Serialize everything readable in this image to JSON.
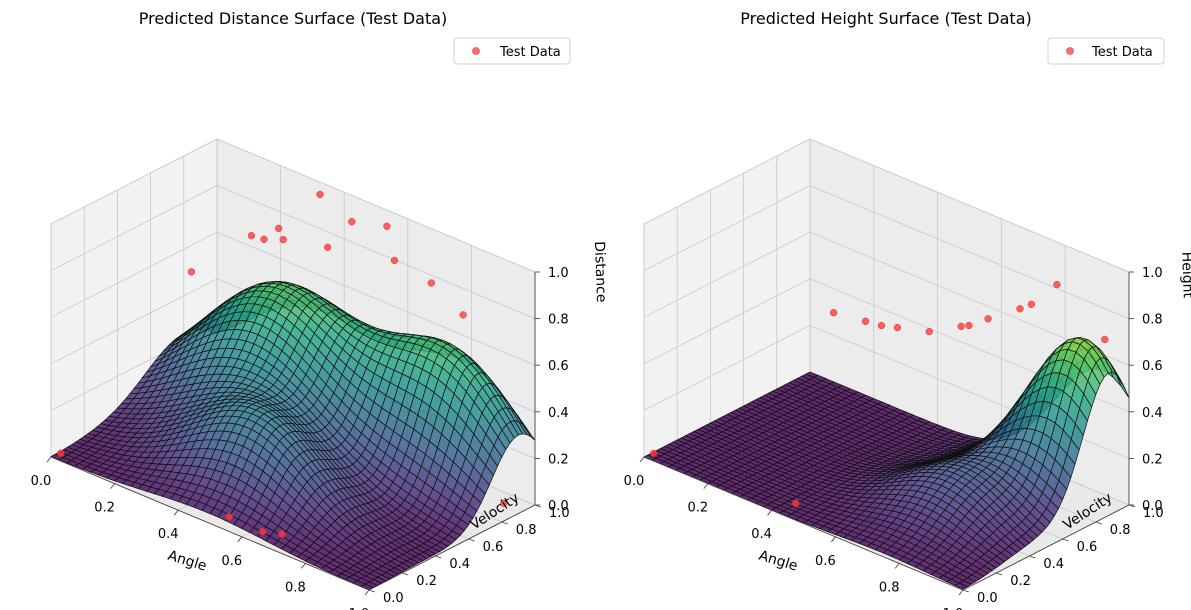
{
  "chart_data": [
    {
      "type": "surface3d",
      "title": "Predicted Distance Surface (Test Data)",
      "xlabel": "Angle",
      "ylabel": "Velocity",
      "zlabel": "Distance",
      "xlim": [
        0,
        1
      ],
      "ylim": [
        0,
        1
      ],
      "zlim": [
        0,
        1
      ],
      "xticks": [
        "0.0",
        "0.2",
        "0.4",
        "0.6",
        "0.8",
        "1.0"
      ],
      "yticks": [
        "0.0",
        "0.2",
        "0.4",
        "0.6",
        "0.8",
        "1.0"
      ],
      "zticks": [
        "0.0",
        "0.2",
        "0.4",
        "0.6",
        "0.8",
        "1.0"
      ],
      "legend": {
        "label": "Test Data",
        "position": "top-right"
      },
      "colormap": "viridis",
      "marker_color": "#ff3b3b",
      "grid": true,
      "surface": {
        "bumps": [
          {
            "x0": 0.3,
            "y0": 0.8,
            "amp": 0.6,
            "sx": 0.22,
            "sy": 0.24
          },
          {
            "x0": 0.8,
            "y0": 0.9,
            "amp": 0.55,
            "sx": 0.2,
            "sy": 0.16
          },
          {
            "x0": 0.5,
            "y0": 0.3,
            "amp": 0.3,
            "sx": 0.18,
            "sy": 0.15
          }
        ]
      },
      "test_points": [
        {
          "x": 0.35,
          "y": 0.95,
          "z": 0.98
        },
        {
          "x": 0.45,
          "y": 0.95,
          "z": 0.92
        },
        {
          "x": 0.55,
          "y": 0.97,
          "z": 0.95
        },
        {
          "x": 0.4,
          "y": 0.9,
          "z": 0.8
        },
        {
          "x": 0.6,
          "y": 0.92,
          "z": 0.85
        },
        {
          "x": 0.15,
          "y": 0.92,
          "z": 0.7
        },
        {
          "x": 0.2,
          "y": 0.9,
          "z": 0.72
        },
        {
          "x": 0.25,
          "y": 0.92,
          "z": 0.74
        },
        {
          "x": 0.22,
          "y": 0.95,
          "z": 0.76
        },
        {
          "x": 0.7,
          "y": 0.95,
          "z": 0.8
        },
        {
          "x": 0.8,
          "y": 0.95,
          "z": 0.72
        },
        {
          "x": 0.05,
          "y": 0.75,
          "z": 0.55
        },
        {
          "x": 0.02,
          "y": 0.02,
          "z": 0.02
        },
        {
          "x": 0.55,
          "y": 0.02,
          "z": 0.05
        },
        {
          "x": 0.65,
          "y": 0.03,
          "z": 0.04
        },
        {
          "x": 0.7,
          "y": 0.05,
          "z": 0.05
        },
        {
          "x": 0.98,
          "y": 0.85,
          "z": 0.05
        }
      ]
    },
    {
      "type": "surface3d",
      "title": "Predicted Height Surface (Test Data)",
      "xlabel": "Angle",
      "ylabel": "Velocity",
      "zlabel": "Height",
      "xlim": [
        0,
        1
      ],
      "ylim": [
        0,
        1
      ],
      "zlim": [
        0,
        1
      ],
      "xticks": [
        "0.0",
        "0.2",
        "0.4",
        "0.6",
        "0.8",
        "1.0"
      ],
      "yticks": [
        "0.0",
        "0.2",
        "0.4",
        "0.6",
        "0.8",
        "1.0"
      ],
      "zticks": [
        "0.0",
        "0.2",
        "0.4",
        "0.6",
        "0.8",
        "1.0"
      ],
      "legend": {
        "label": "Test Data",
        "position": "top-right"
      },
      "colormap": "viridis",
      "marker_color": "#ff3b3b",
      "grid": true,
      "surface": {
        "bumps": [
          {
            "x0": 0.92,
            "y0": 0.88,
            "amp": 0.7,
            "sx": 0.15,
            "sy": 0.16
          },
          {
            "x0": 0.75,
            "y0": 0.45,
            "amp": 0.2,
            "sx": 0.15,
            "sy": 0.2
          }
        ]
      },
      "test_points": [
        {
          "x": 0.8,
          "y": 0.95,
          "z": 0.85
        },
        {
          "x": 0.95,
          "y": 0.95,
          "z": 0.7
        },
        {
          "x": 0.7,
          "y": 0.92,
          "z": 0.7
        },
        {
          "x": 0.72,
          "y": 0.95,
          "z": 0.72
        },
        {
          "x": 0.6,
          "y": 0.92,
          "z": 0.6
        },
        {
          "x": 0.55,
          "y": 0.9,
          "z": 0.55
        },
        {
          "x": 0.5,
          "y": 0.95,
          "z": 0.5
        },
        {
          "x": 0.4,
          "y": 0.95,
          "z": 0.42
        },
        {
          "x": 0.3,
          "y": 0.95,
          "z": 0.38
        },
        {
          "x": 0.25,
          "y": 0.95,
          "z": 0.36
        },
        {
          "x": 0.2,
          "y": 0.95,
          "z": 0.35
        },
        {
          "x": 0.1,
          "y": 0.95,
          "z": 0.33
        },
        {
          "x": 0.02,
          "y": 0.02,
          "z": 0.02
        },
        {
          "x": 0.45,
          "y": 0.05,
          "z": 0.04
        }
      ]
    }
  ]
}
